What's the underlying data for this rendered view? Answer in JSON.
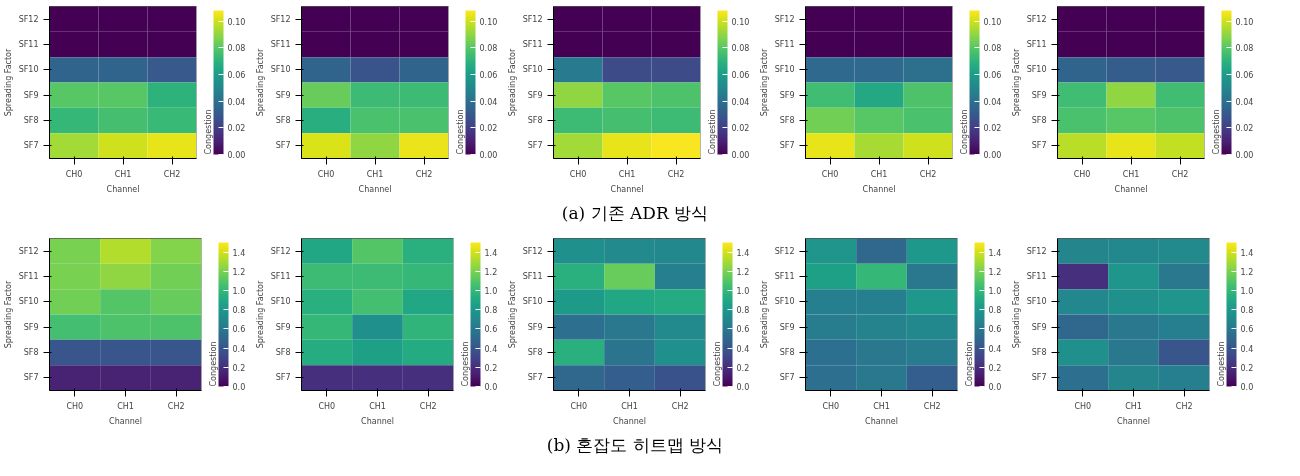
{
  "chart_data": [
    {
      "type": "heatmap",
      "xlabel": "Channel",
      "ylabel": "Spreading Factor",
      "clabel": "Congestion",
      "categories": [
        "CH0",
        "CH1",
        "CH2"
      ],
      "y_categories": [
        "SF12",
        "SF11",
        "SF10",
        "SF9",
        "SF8",
        "SF7"
      ],
      "cells": [
        [
          0,
          0,
          0
        ],
        [
          0,
          0,
          0
        ],
        [
          0.035,
          0.035,
          0.03
        ],
        [
          0.08,
          0.08,
          0.07
        ],
        [
          0.072,
          0.076,
          0.073
        ],
        [
          0.093,
          0.1,
          0.104
        ]
      ],
      "clim": [
        0,
        0.108
      ],
      "cticks": [
        {
          "value": 0,
          "label": "0.00"
        },
        0.02,
        0.04,
        0.06,
        0.08,
        {
          "value": 0.1,
          "label": "0.10"
        }
      ],
      "annotations": [
        "(a)  기존 ADR 방식"
      ]
    },
    {
      "type": "heatmap",
      "xlabel": "Channel",
      "ylabel": "Spreading Factor",
      "clabel": "Congestion",
      "categories": [
        "CH0",
        "CH1",
        "CH2"
      ],
      "y_categories": [
        "SF12",
        "SF11",
        "SF10",
        "SF9",
        "SF8",
        "SF7"
      ],
      "cells": [
        [
          0,
          0,
          0
        ],
        [
          0,
          0,
          0
        ],
        [
          0.035,
          0.028,
          0.035
        ],
        [
          0.083,
          0.074,
          0.074
        ],
        [
          0.068,
          0.077,
          0.077
        ],
        [
          0.102,
          0.09,
          0.105
        ]
      ],
      "clim": [
        0,
        0.108
      ],
      "cticks": [
        {
          "value": 0,
          "label": "0.00"
        },
        0.02,
        0.04,
        0.06,
        0.08,
        {
          "value": 0.1,
          "label": "0.10"
        }
      ]
    },
    {
      "type": "heatmap",
      "xlabel": "Channel",
      "ylabel": "Spreading Factor",
      "clabel": "Congestion",
      "categories": [
        "CH0",
        "CH1",
        "CH2"
      ],
      "y_categories": [
        "SF12",
        "SF11",
        "SF10",
        "SF9",
        "SF8",
        "SF7"
      ],
      "cells": [
        [
          0,
          0,
          0
        ],
        [
          0,
          0,
          0
        ],
        [
          0.045,
          0.025,
          0.025
        ],
        [
          0.09,
          0.08,
          0.078
        ],
        [
          0.074,
          0.076,
          0.074
        ],
        [
          0.093,
          0.104,
          0.107
        ]
      ],
      "clim": [
        0,
        0.108
      ],
      "cticks": [
        {
          "value": 0,
          "label": "0.00"
        },
        0.02,
        0.04,
        0.06,
        0.08,
        {
          "value": 0.1,
          "label": "0.10"
        }
      ]
    },
    {
      "type": "heatmap",
      "xlabel": "Channel",
      "ylabel": "Spreading Factor",
      "clabel": "Congestion",
      "categories": [
        "CH0",
        "CH1",
        "CH2"
      ],
      "y_categories": [
        "SF12",
        "SF11",
        "SF10",
        "SF9",
        "SF8",
        "SF7"
      ],
      "cells": [
        [
          0,
          0,
          0
        ],
        [
          0,
          0,
          0
        ],
        [
          0.037,
          0.037,
          0.04
        ],
        [
          0.075,
          0.065,
          0.078
        ],
        [
          0.085,
          0.08,
          0.077
        ],
        [
          0.104,
          0.094,
          0.1
        ]
      ],
      "clim": [
        0,
        0.108
      ],
      "cticks": [
        {
          "value": 0,
          "label": "0.00"
        },
        0.02,
        0.04,
        0.06,
        0.08,
        {
          "value": 0.1,
          "label": "0.10"
        }
      ]
    },
    {
      "type": "heatmap",
      "xlabel": "Channel",
      "ylabel": "Spreading Factor",
      "clabel": "Congestion",
      "categories": [
        "CH0",
        "CH1",
        "CH2"
      ],
      "y_categories": [
        "SF12",
        "SF11",
        "SF10",
        "SF9",
        "SF8",
        "SF7"
      ],
      "cells": [
        [
          0,
          0,
          0
        ],
        [
          0,
          0,
          0
        ],
        [
          0.035,
          0.032,
          0.03
        ],
        [
          0.075,
          0.09,
          0.075
        ],
        [
          0.077,
          0.08,
          0.078
        ],
        [
          0.097,
          0.104,
          0.098
        ]
      ],
      "clim": [
        0,
        0.108
      ],
      "cticks": [
        {
          "value": 0,
          "label": "0.00"
        },
        0.02,
        0.04,
        0.06,
        0.08,
        {
          "value": 0.1,
          "label": "0.10"
        }
      ]
    },
    {
      "type": "heatmap",
      "xlabel": "Channel",
      "ylabel": "Spreading Factor",
      "clabel": "Congestion",
      "categories": [
        "CH0",
        "CH1",
        "CH2"
      ],
      "y_categories": [
        "SF12",
        "SF11",
        "SF10",
        "SF9",
        "SF8",
        "SF7"
      ],
      "cells": [
        [
          1.2,
          1.33,
          1.22
        ],
        [
          1.2,
          1.25,
          1.18
        ],
        [
          1.18,
          1.1,
          1.15
        ],
        [
          1.05,
          1.08,
          1.08
        ],
        [
          0.4,
          0.4,
          0.4
        ],
        [
          0.15,
          0.15,
          0.15
        ]
      ],
      "clim": [
        0,
        1.5
      ],
      "cticks": [
        {
          "value": 0,
          "label": "0.0"
        },
        0.2,
        0.4,
        0.6,
        0.8,
        {
          "value": 1,
          "label": "1.0"
        },
        1.2,
        1.4
      ],
      "annotations": [
        "(b) 혼잡도 히트맵 방식"
      ]
    },
    {
      "type": "heatmap",
      "xlabel": "Channel",
      "ylabel": "Spreading Factor",
      "clabel": "Congestion",
      "categories": [
        "CH0",
        "CH1",
        "CH2"
      ],
      "y_categories": [
        "SF12",
        "SF11",
        "SF10",
        "SF9",
        "SF8",
        "SF7"
      ],
      "cells": [
        [
          0.9,
          1.1,
          0.95
        ],
        [
          1.03,
          1.03,
          1.0
        ],
        [
          0.95,
          1.05,
          0.9
        ],
        [
          1.0,
          0.75,
          0.98
        ],
        [
          0.93,
          0.85,
          0.92
        ],
        [
          0.2,
          0.2,
          0.2
        ]
      ],
      "clim": [
        0,
        1.5
      ],
      "cticks": [
        {
          "value": 0,
          "label": "0.0"
        },
        0.2,
        0.4,
        0.6,
        0.8,
        {
          "value": 1,
          "label": "1.0"
        },
        1.2,
        1.4
      ]
    },
    {
      "type": "heatmap",
      "xlabel": "Channel",
      "ylabel": "Spreading Factor",
      "clabel": "Congestion",
      "categories": [
        "CH0",
        "CH1",
        "CH2"
      ],
      "y_categories": [
        "SF12",
        "SF11",
        "SF10",
        "SF9",
        "SF8",
        "SF7"
      ],
      "cells": [
        [
          0.75,
          0.72,
          0.7
        ],
        [
          0.95,
          1.15,
          0.65
        ],
        [
          0.82,
          0.9,
          0.92
        ],
        [
          0.55,
          0.6,
          0.72
        ],
        [
          0.95,
          0.58,
          0.75
        ],
        [
          0.5,
          0.45,
          0.38
        ]
      ],
      "clim": [
        0,
        1.5
      ],
      "cticks": [
        {
          "value": 0,
          "label": "0.0"
        },
        0.2,
        0.4,
        0.6,
        0.8,
        {
          "value": 1,
          "label": "1.0"
        },
        1.2,
        1.4
      ]
    },
    {
      "type": "heatmap",
      "xlabel": "Channel",
      "ylabel": "Spreading Factor",
      "clabel": "Congestion",
      "categories": [
        "CH0",
        "CH1",
        "CH2"
      ],
      "y_categories": [
        "SF12",
        "SF11",
        "SF10",
        "SF9",
        "SF8",
        "SF7"
      ],
      "cells": [
        [
          0.78,
          0.5,
          0.8
        ],
        [
          0.85,
          1.0,
          0.6
        ],
        [
          0.65,
          0.65,
          0.8
        ],
        [
          0.63,
          0.67,
          0.7
        ],
        [
          0.55,
          0.6,
          0.63
        ],
        [
          0.55,
          0.6,
          0.45
        ]
      ],
      "clim": [
        0,
        1.5
      ],
      "cticks": [
        {
          "value": 0,
          "label": "0.0"
        },
        0.2,
        0.4,
        0.6,
        0.8,
        {
          "value": 1,
          "label": "1.0"
        },
        1.2,
        1.4
      ]
    },
    {
      "type": "heatmap",
      "xlabel": "Channel",
      "ylabel": "Spreading Factor",
      "clabel": "Congestion",
      "categories": [
        "CH0",
        "CH1",
        "CH2"
      ],
      "y_categories": [
        "SF12",
        "SF11",
        "SF10",
        "SF9",
        "SF8",
        "SF7"
      ],
      "cells": [
        [
          0.68,
          0.7,
          0.72
        ],
        [
          0.2,
          0.78,
          0.6
        ],
        [
          0.7,
          0.75,
          0.78
        ],
        [
          0.5,
          0.6,
          0.65
        ],
        [
          0.75,
          0.6,
          0.4
        ],
        [
          0.55,
          0.68,
          0.65
        ]
      ],
      "clim": [
        0,
        1.5
      ],
      "cticks": [
        {
          "value": 0,
          "label": "0.0"
        },
        0.2,
        0.4,
        0.6,
        0.8,
        {
          "value": 1,
          "label": "1.0"
        },
        1.2,
        1.4
      ]
    }
  ]
}
